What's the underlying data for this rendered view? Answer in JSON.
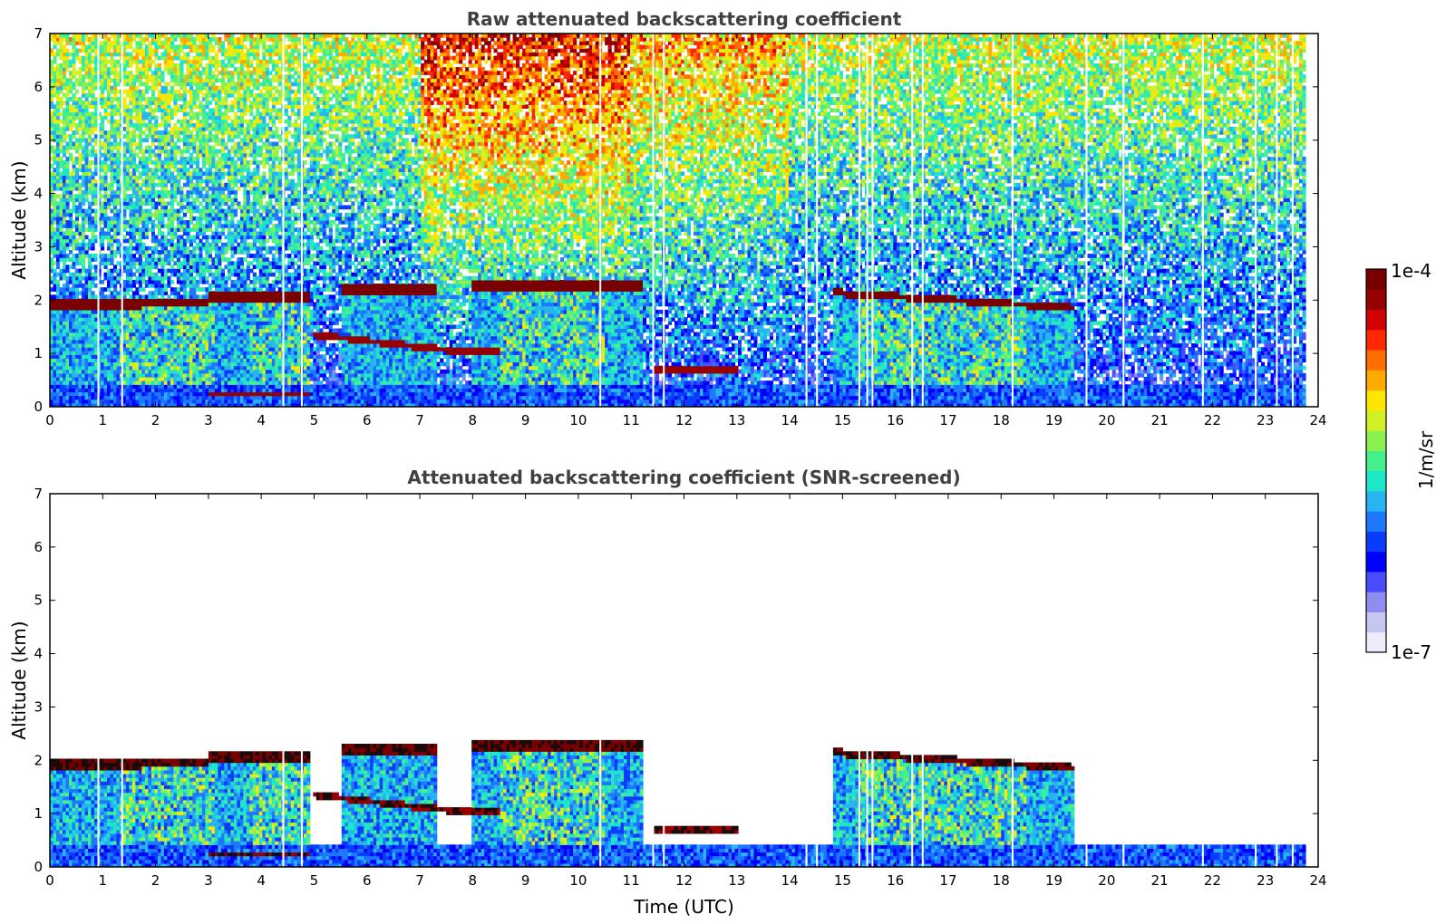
{
  "colors": {
    "map": [
      "#ececfa",
      "#c6c6f0",
      "#8e8ef0",
      "#4b4bff",
      "#0000ff",
      "#0a3cff",
      "#1e78ff",
      "#28b4f0",
      "#1ee6c8",
      "#46f08c",
      "#8cf050",
      "#d2f028",
      "#ffe600",
      "#ffaa00",
      "#ff6e00",
      "#ff2800",
      "#d20000",
      "#960000",
      "#780000"
    ],
    "screened_dark": "#1a0a0a"
  },
  "chart_data": [
    {
      "type": "heatmap",
      "title": "Raw attenuated backscattering coefficient",
      "xlabel": "",
      "ylabel": "Altitude (km)",
      "xlim": [
        0,
        24
      ],
      "ylim": [
        0,
        7
      ],
      "xticks": [
        "0",
        "1",
        "2",
        "3",
        "4",
        "5",
        "6",
        "7",
        "8",
        "9",
        "10",
        "11",
        "12",
        "13",
        "14",
        "15",
        "16",
        "17",
        "18",
        "19",
        "20",
        "21",
        "22",
        "23",
        "24"
      ],
      "yticks": [
        "0",
        "1",
        "2",
        "3",
        "4",
        "5",
        "6",
        "7"
      ],
      "cloud_layers": [
        {
          "t": [
            0,
            3.0
          ],
          "alt": [
            1.85,
            2.05
          ]
        },
        {
          "t": [
            3.0,
            4.8
          ],
          "alt": [
            2.0,
            2.15
          ]
        },
        {
          "t": [
            5.5,
            7.3
          ],
          "alt": [
            2.1,
            2.3
          ]
        },
        {
          "t": [
            8.0,
            11.2
          ],
          "alt": [
            2.2,
            2.35
          ]
        },
        {
          "t": [
            15.5,
            19.4
          ],
          "alt": [
            2.15,
            1.85
          ]
        },
        {
          "t": [
            5.0,
            7.5
          ],
          "alt": [
            1.3,
            1.1
          ]
        },
        {
          "t": [
            11.5,
            13.0
          ],
          "alt": [
            0.7,
            0.8
          ]
        },
        {
          "t": [
            3.0,
            4.8
          ],
          "alt": [
            0.2,
            0.25
          ]
        }
      ]
    },
    {
      "type": "heatmap",
      "title": "Attenuated backscattering coefficient (SNR-screened)",
      "xlabel": "Time (UTC)",
      "ylabel": "Altitude (km)",
      "xlim": [
        0,
        24
      ],
      "ylim": [
        0,
        7
      ],
      "xticks": [
        "0",
        "1",
        "2",
        "3",
        "4",
        "5",
        "6",
        "7",
        "8",
        "9",
        "10",
        "11",
        "12",
        "13",
        "14",
        "15",
        "16",
        "17",
        "18",
        "19",
        "20",
        "21",
        "22",
        "23",
        "24"
      ],
      "yticks": [
        "0",
        "1",
        "2",
        "3",
        "4",
        "5",
        "6",
        "7"
      ]
    }
  ],
  "colorbar": {
    "label": "1/m/sr",
    "max_label": "1e-4",
    "min_label": "1e-7",
    "range": [
      1e-07,
      0.0001
    ],
    "scale": "log"
  }
}
